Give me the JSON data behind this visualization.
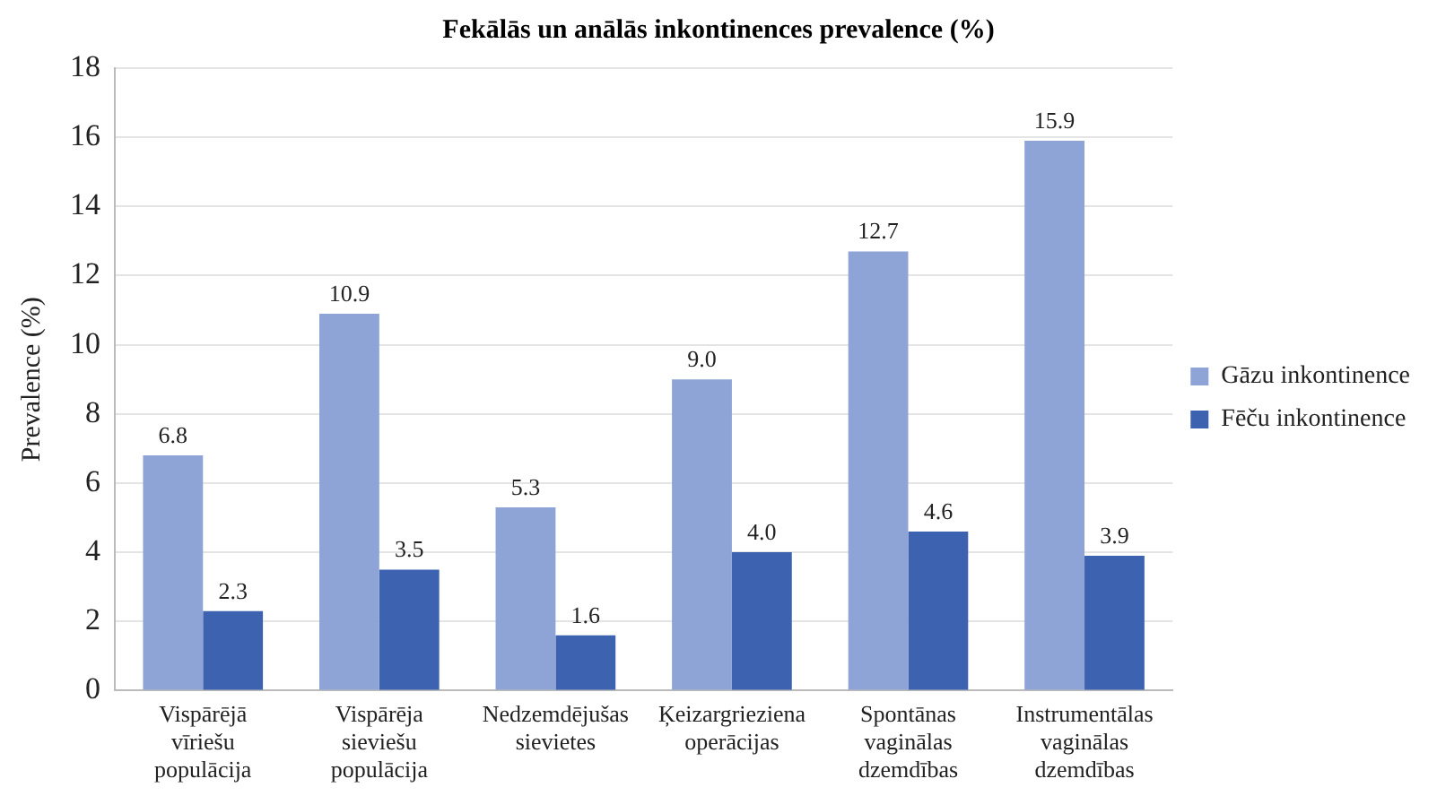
{
  "chart_data": {
    "type": "bar",
    "title": "Fekālās un anālās inkontinences prevalence (%)",
    "ylabel": "Prevalence (%)",
    "categories": [
      "Vispārējā vīriešu populācija",
      "Vispārēja sieviešu populācija",
      "Nedzemdējušas sievietes",
      "Ķeizargrieziena operācijas",
      "Spontānas vaginālas dzemdības",
      "Instrumentālas vaginālas dzemdības"
    ],
    "series": [
      {
        "name": "Gāzu inkontinence",
        "color": "#8fa4d6",
        "values": [
          6.8,
          10.9,
          5.3,
          9.0,
          12.7,
          15.9
        ],
        "value_labels": [
          "6.8",
          "10.9",
          "5.3",
          "9.0",
          "12.7",
          "15.9"
        ]
      },
      {
        "name": "Fēču inkontinence",
        "color": "#3d63b0",
        "values": [
          2.3,
          3.5,
          1.6,
          4.0,
          4.6,
          3.9
        ],
        "value_labels": [
          "2.3",
          "3.5",
          "1.6",
          "4.0",
          "4.6",
          "3.9"
        ]
      }
    ],
    "ylim": [
      0,
      18
    ],
    "yticks": [
      0,
      2,
      4,
      6,
      8,
      10,
      12,
      14,
      16,
      18
    ],
    "grid": "y",
    "legend": "right"
  }
}
